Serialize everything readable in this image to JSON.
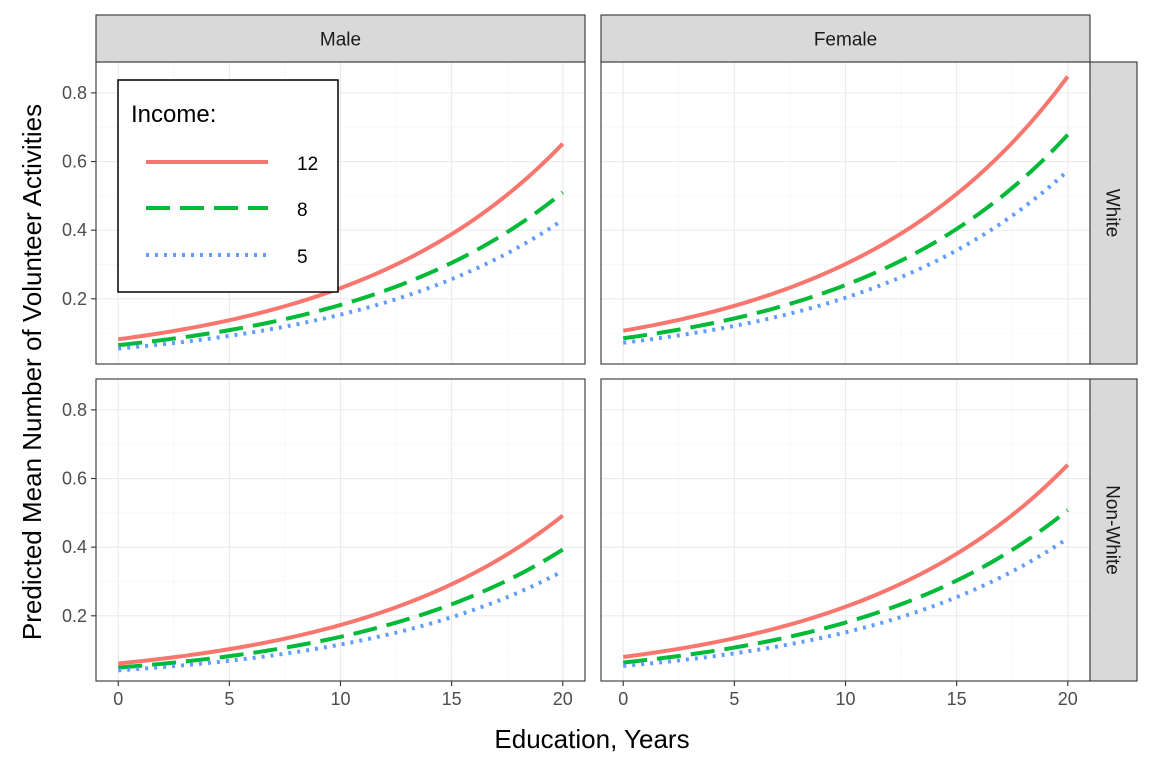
{
  "chart_data": {
    "type": "line",
    "xlabel": "Education, Years",
    "ylabel": "Predicted Mean Number of Volunteer Activities",
    "xlim": [
      -1,
      21
    ],
    "ylim": [
      0.01,
      0.89
    ],
    "xticks": [
      0,
      5,
      10,
      15,
      20
    ],
    "xtick_labels": [
      "0",
      "5",
      "10",
      "15",
      "20"
    ],
    "yticks": [
      0.2,
      0.4,
      0.6,
      0.8
    ],
    "ytick_labels": [
      "0.2",
      "0.4",
      "0.6",
      "0.8"
    ],
    "grid": true,
    "facet_cols": [
      "Male",
      "Female"
    ],
    "facet_rows": [
      "White",
      "Non-White"
    ],
    "legend": {
      "title": "Income:",
      "position": "inside top-left of first panel",
      "entries": [
        {
          "label": "12",
          "color": "#f8766d",
          "dash": "solid"
        },
        {
          "label": "8",
          "color": "#00ba38",
          "dash": "dashed"
        },
        {
          "label": "5",
          "color": "#619cff",
          "dash": "dotted"
        }
      ]
    },
    "panels": [
      {
        "col": "Male",
        "row": "White",
        "series": [
          {
            "name": "12",
            "x": [
              0,
              20
            ],
            "y": [
              0.082,
              0.652
            ]
          },
          {
            "name": "8",
            "x": [
              0,
              20
            ],
            "y": [
              0.065,
              0.51
            ]
          },
          {
            "name": "5",
            "x": [
              0,
              20
            ],
            "y": [
              0.055,
              0.43
            ]
          }
        ]
      },
      {
        "col": "Female",
        "row": "White",
        "series": [
          {
            "name": "12",
            "x": [
              0,
              20
            ],
            "y": [
              0.107,
              0.848
            ]
          },
          {
            "name": "8",
            "x": [
              0,
              20
            ],
            "y": [
              0.085,
              0.678
            ]
          },
          {
            "name": "5",
            "x": [
              0,
              20
            ],
            "y": [
              0.072,
              0.573
            ]
          }
        ]
      },
      {
        "col": "Male",
        "row": "Non-White",
        "series": [
          {
            "name": "12",
            "x": [
              0,
              20
            ],
            "y": [
              0.061,
              0.492
            ]
          },
          {
            "name": "8",
            "x": [
              0,
              20
            ],
            "y": [
              0.049,
              0.393
            ]
          },
          {
            "name": "5",
            "x": [
              0,
              20
            ],
            "y": [
              0.041,
              0.33
            ]
          }
        ]
      },
      {
        "col": "Female",
        "row": "Non-White",
        "series": [
          {
            "name": "12",
            "x": [
              0,
              20
            ],
            "y": [
              0.08,
              0.64
            ]
          },
          {
            "name": "8",
            "x": [
              0,
              20
            ],
            "y": [
              0.064,
              0.508
            ]
          },
          {
            "name": "5",
            "x": [
              0,
              20
            ],
            "y": [
              0.054,
              0.426
            ]
          }
        ]
      }
    ]
  }
}
